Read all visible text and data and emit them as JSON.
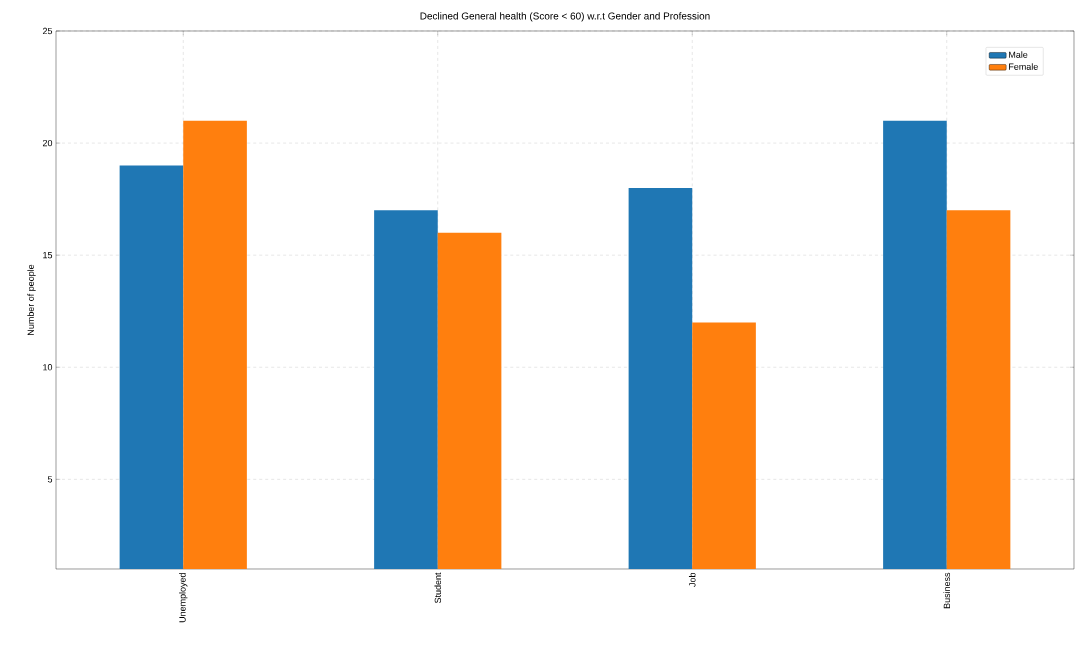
{
  "chart_data": {
    "type": "bar",
    "title": "Declined General health (Score < 60) w.r.t Gender and Profession",
    "ylabel": "Number of people",
    "categories": [
      "Unemployed",
      "Student",
      "Job",
      "Business"
    ],
    "series": [
      {
        "name": "Male",
        "color": "#1f77b4",
        "values": [
          19,
          17,
          18,
          21
        ]
      },
      {
        "name": "Female",
        "color": "#ff7f0e",
        "values": [
          21,
          16,
          12,
          17
        ]
      }
    ],
    "ylim": [
      1,
      25
    ],
    "yticks": [
      5,
      10,
      15,
      20,
      25
    ],
    "grid": true,
    "legend": "top right"
  }
}
